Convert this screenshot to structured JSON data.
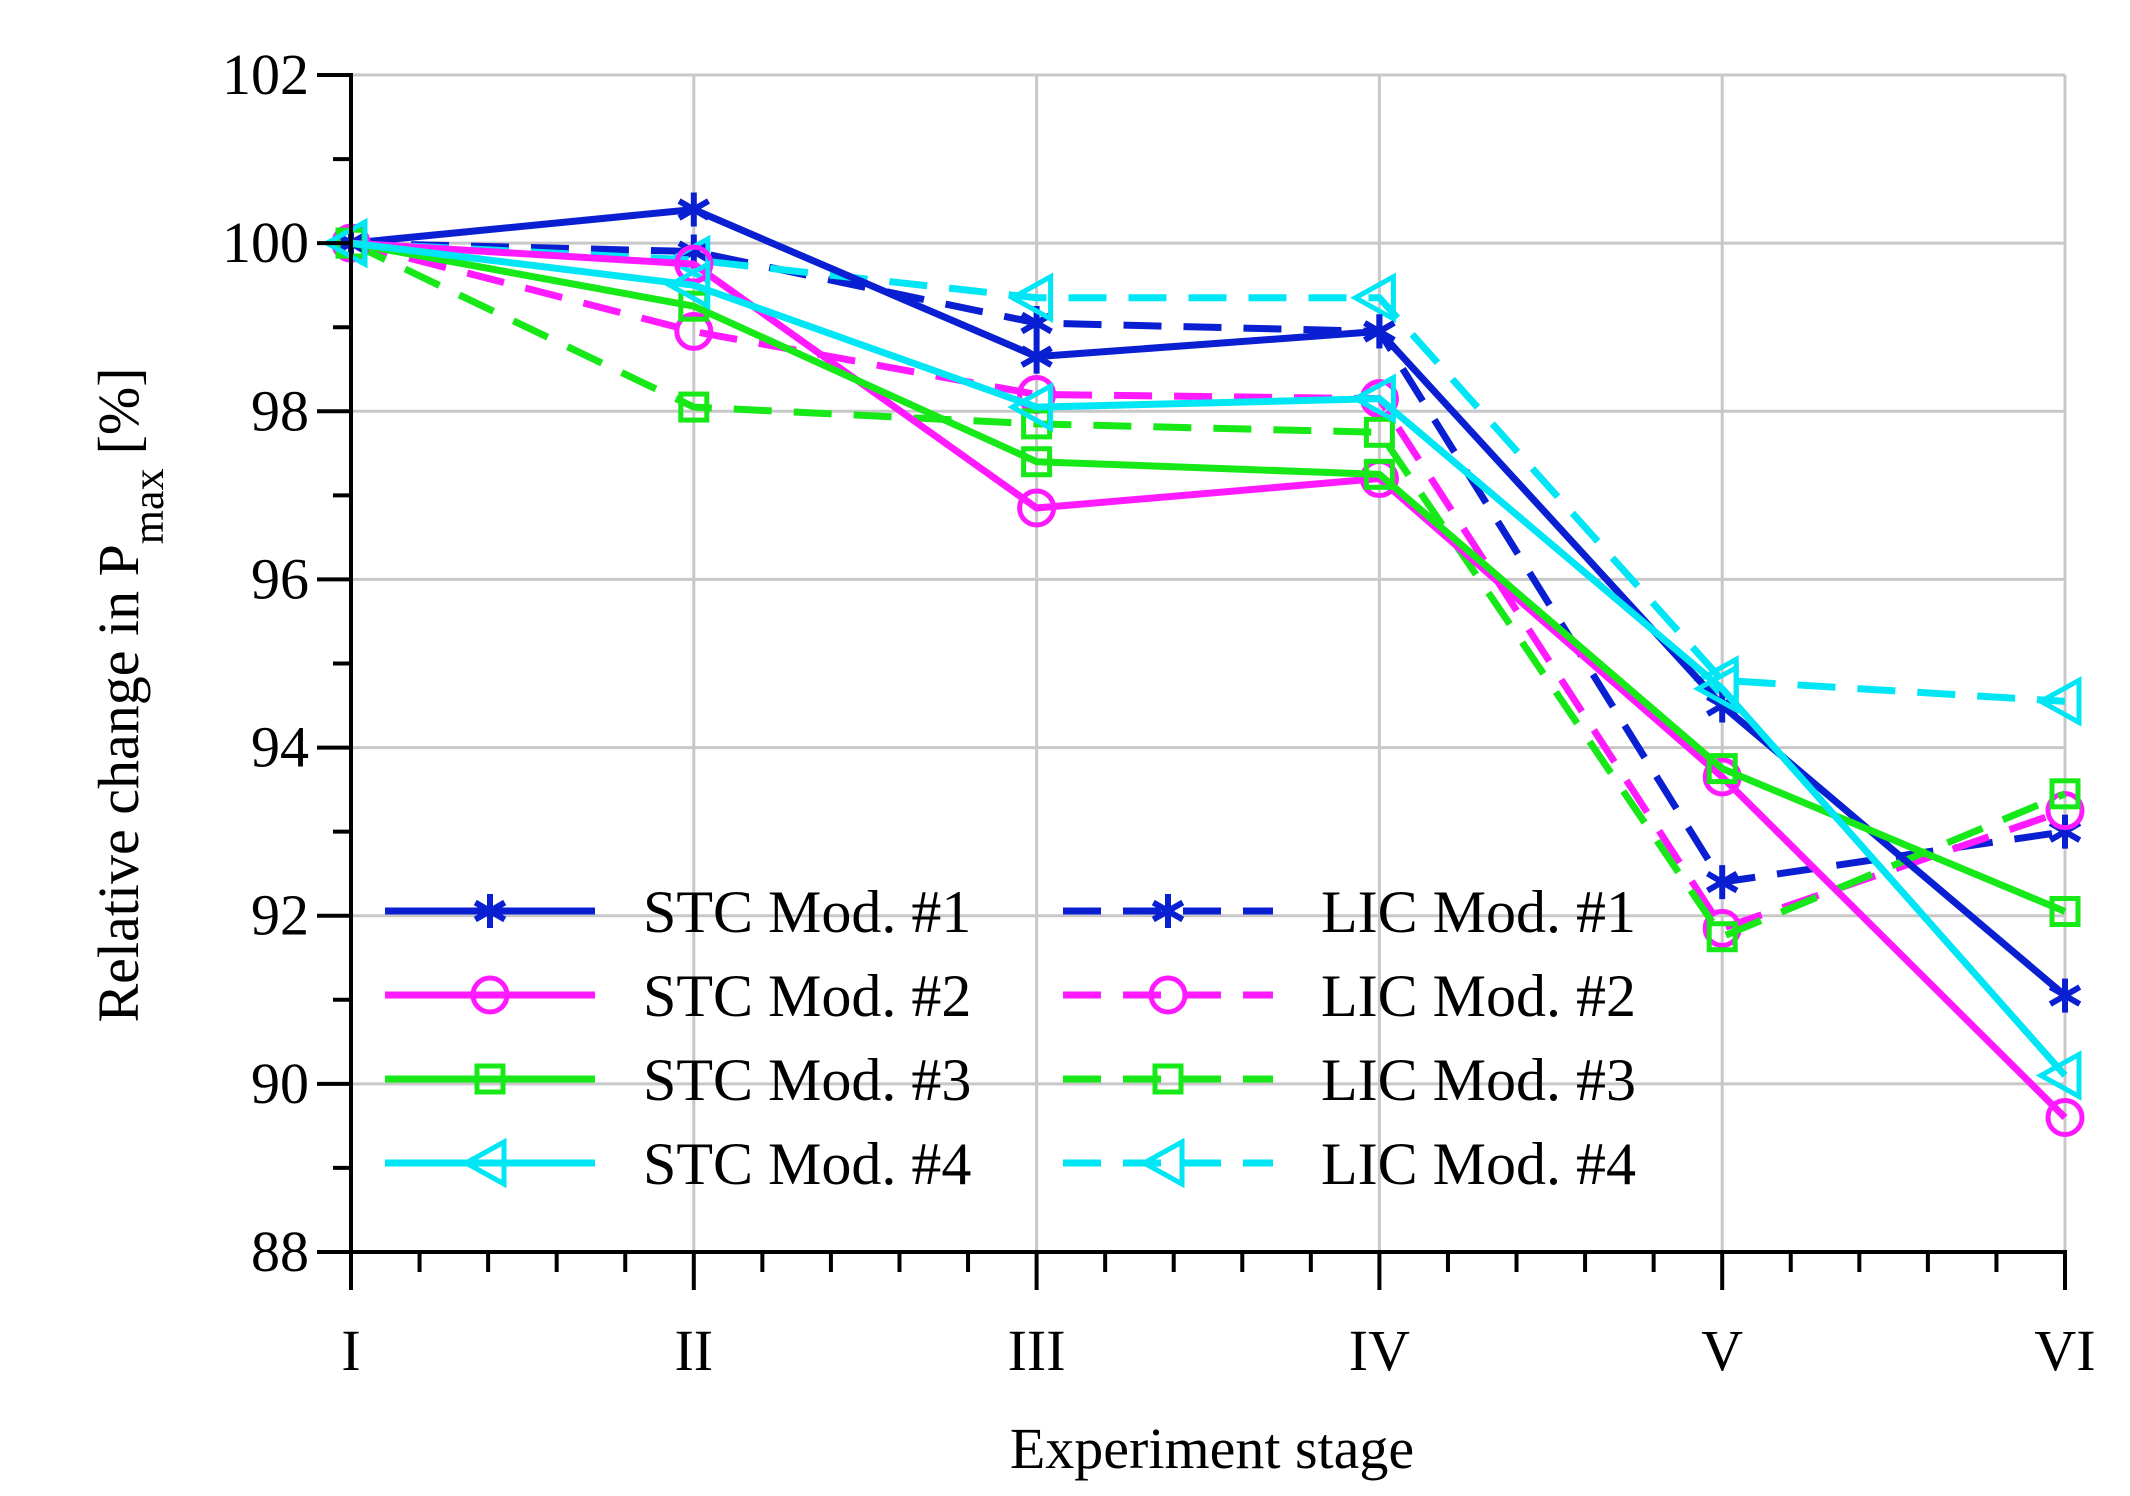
{
  "chart_data": {
    "type": "line",
    "title": "",
    "xlabel": "Experiment stage",
    "ylabel": "Relative change in P",
    "ylabel_subscript": "max",
    "ylabel_unit": "[%]",
    "categories": [
      "I",
      "II",
      "III",
      "IV",
      "V",
      "VI"
    ],
    "ylim": [
      88,
      102
    ],
    "yticks": [
      "88",
      "90",
      "92",
      "94",
      "96",
      "98",
      "100",
      "102"
    ],
    "grid": true,
    "legend_position": "bottom-left",
    "series": [
      {
        "name": "STC Mod. #1",
        "color": "#0a1fd1",
        "dash": "solid",
        "marker": "asterisk",
        "values": [
          100.0,
          100.4,
          98.65,
          98.95,
          94.5,
          91.05
        ]
      },
      {
        "name": "STC Mod. #2",
        "color": "#ff1aff",
        "dash": "solid",
        "marker": "circle",
        "values": [
          100.0,
          99.75,
          96.85,
          97.2,
          93.65,
          89.6
        ]
      },
      {
        "name": "STC Mod. #3",
        "color": "#17e817",
        "dash": "solid",
        "marker": "square",
        "values": [
          100.0,
          99.25,
          97.4,
          97.25,
          93.75,
          92.05
        ]
      },
      {
        "name": "STC Mod. #4",
        "color": "#00e6f5",
        "dash": "solid",
        "marker": "triangle-left",
        "values": [
          100.0,
          99.5,
          98.05,
          98.15,
          94.7,
          90.1
        ]
      },
      {
        "name": "LIC Mod. #1",
        "color": "#0a1fd1",
        "dash": "dashed",
        "marker": "asterisk",
        "values": [
          100.0,
          99.9,
          99.05,
          98.95,
          92.4,
          93.0
        ]
      },
      {
        "name": "LIC Mod. #2",
        "color": "#ff1aff",
        "dash": "dashed",
        "marker": "circle",
        "values": [
          100.0,
          98.95,
          98.2,
          98.15,
          91.85,
          93.25
        ]
      },
      {
        "name": "LIC Mod. #3",
        "color": "#17e817",
        "dash": "dashed",
        "marker": "square",
        "values": [
          100.0,
          98.05,
          97.85,
          97.75,
          91.75,
          93.45
        ]
      },
      {
        "name": "LIC Mod. #4",
        "color": "#00e6f5",
        "dash": "dashed",
        "marker": "triangle-left",
        "values": [
          100.0,
          99.8,
          99.35,
          99.35,
          94.8,
          94.55
        ]
      }
    ]
  }
}
